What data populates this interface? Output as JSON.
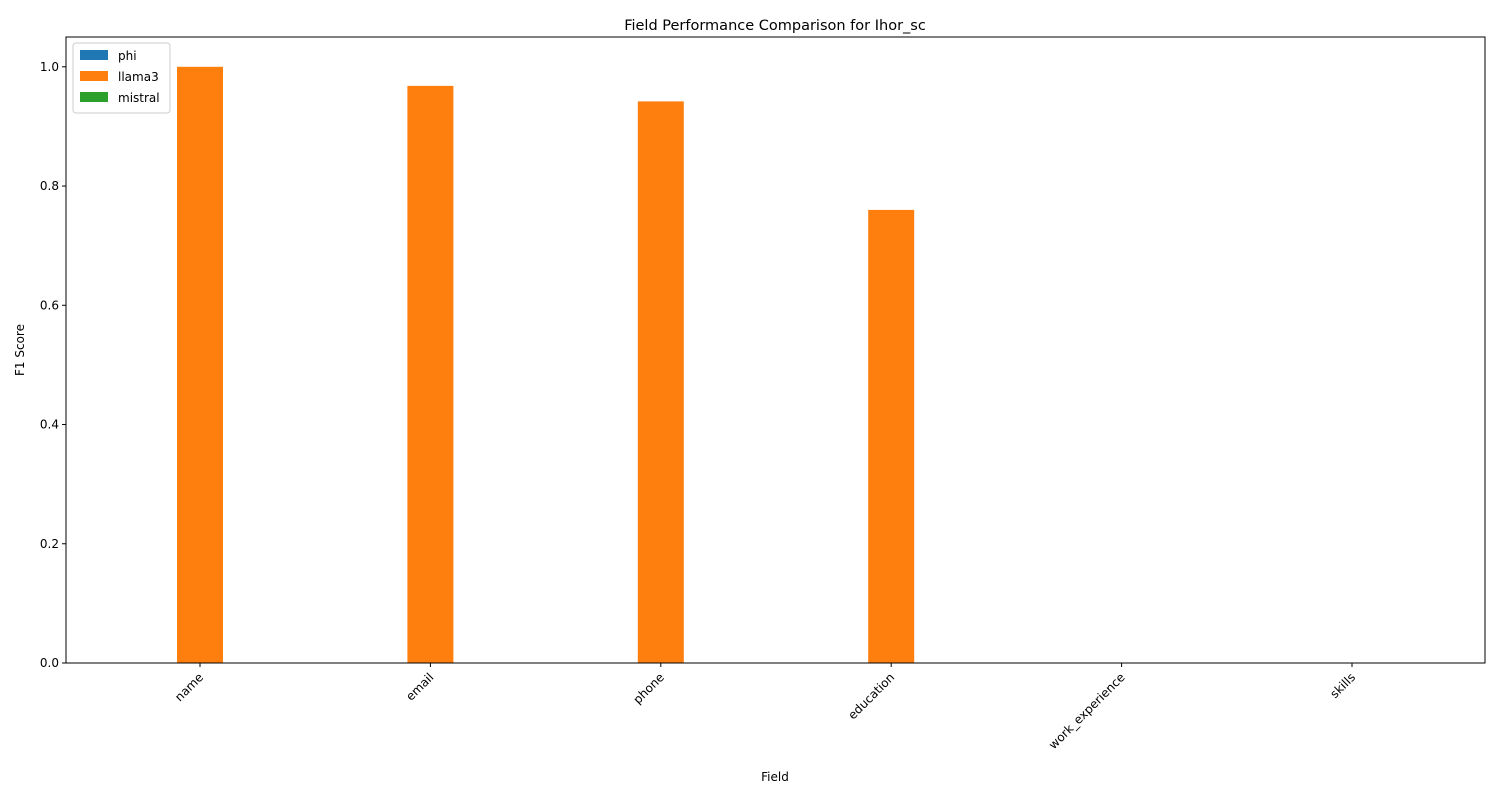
{
  "chart_data": {
    "type": "bar",
    "title": "Field Performance Comparison for Ihor_sc",
    "xlabel": "Field",
    "ylabel": "F1 Score",
    "categories": [
      "name",
      "email",
      "phone",
      "education",
      "work_experience",
      "skills"
    ],
    "series": [
      {
        "name": "phi",
        "color": "#1f77b4",
        "values": [
          0,
          0,
          0,
          0,
          0,
          0
        ]
      },
      {
        "name": "llama3",
        "color": "#ff7f0e",
        "values": [
          1.0,
          0.968,
          0.942,
          0.76,
          0,
          0
        ]
      },
      {
        "name": "mistral",
        "color": "#2ca02c",
        "values": [
          0,
          0,
          0,
          0,
          0,
          0
        ]
      }
    ],
    "ylim": [
      0,
      1.05
    ],
    "yticks": [
      "0.0",
      "0.2",
      "0.4",
      "0.6",
      "0.8",
      "1.0"
    ],
    "grid": false,
    "legend_position": "upper-left"
  }
}
